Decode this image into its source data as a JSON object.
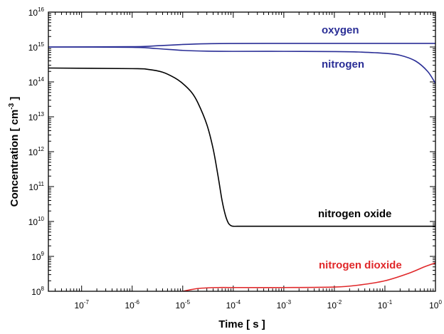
{
  "chart_data": {
    "type": "line",
    "title": "",
    "xlabel": "Time [ s ]",
    "ylabel": "Concentration [ cm",
    "ylabel_exponent": "-3",
    "ylabel_suffix": " ]",
    "x_scale": "log",
    "y_scale": "log",
    "xlim": [
      2.2e-08,
      1
    ],
    "ylim": [
      100000000.0,
      1e+16
    ],
    "x_ticks": [
      {
        "base": "10",
        "exp": "-7",
        "value": 1e-07
      },
      {
        "base": "10",
        "exp": "-6",
        "value": 1e-06
      },
      {
        "base": "10",
        "exp": "-5",
        "value": 1e-05
      },
      {
        "base": "10",
        "exp": "-4",
        "value": 0.0001
      },
      {
        "base": "10",
        "exp": "-3",
        "value": 0.001
      },
      {
        "base": "10",
        "exp": "-2",
        "value": 0.01
      },
      {
        "base": "10",
        "exp": "-1",
        "value": 0.1
      },
      {
        "base": "10",
        "exp": "0",
        "value": 1
      }
    ],
    "y_ticks": [
      {
        "base": "10",
        "exp": "8",
        "value": 100000000.0
      },
      {
        "base": "10",
        "exp": "9",
        "value": 1000000000.0
      },
      {
        "base": "10",
        "exp": "10",
        "value": 10000000000.0
      },
      {
        "base": "10",
        "exp": "11",
        "value": 100000000000.0
      },
      {
        "base": "10",
        "exp": "12",
        "value": 1000000000000.0
      },
      {
        "base": "10",
        "exp": "13",
        "value": 10000000000000.0
      },
      {
        "base": "10",
        "exp": "14",
        "value": 100000000000000.0
      },
      {
        "base": "10",
        "exp": "15",
        "value": 1000000000000000.0
      },
      {
        "base": "10",
        "exp": "16",
        "value": 1e+16
      }
    ],
    "series": [
      {
        "name": "oxygen",
        "color": "#2a2e96",
        "x": [
          2.2e-08,
          1e-06,
          3e-06,
          1e-05,
          3e-05,
          0.0001,
          0.001,
          0.01,
          0.1,
          1
        ],
        "y": [
          1000000000000000.0,
          1020000000000000.0,
          1080000000000000.0,
          1180000000000000.0,
          1240000000000000.0,
          1260000000000000.0,
          1270000000000000.0,
          1270000000000000.0,
          1270000000000000.0,
          1270000000000000.0
        ]
      },
      {
        "name": "nitrogen",
        "color": "#2a2e96",
        "x": [
          2.2e-08,
          1e-06,
          3e-06,
          1e-05,
          3e-05,
          0.0001,
          0.001,
          0.01,
          0.03,
          0.1,
          0.2,
          0.4,
          0.7,
          1
        ],
        "y": [
          1000000000000000.0,
          980000000000000.0,
          900000000000000.0,
          800000000000000.0,
          760000000000000.0,
          750000000000000.0,
          750000000000000.0,
          740000000000000.0,
          720000000000000.0,
          660000000000000.0,
          580000000000000.0,
          400000000000000.0,
          200000000000000.0,
          90000000000000.0
        ]
      },
      {
        "name": "nitrogen oxide",
        "color": "#000000",
        "x": [
          2.2e-08,
          1e-06,
          2e-06,
          4e-06,
          7e-06,
          1e-05,
          1.5e-05,
          2e-05,
          3e-05,
          4e-05,
          5e-05,
          6e-05,
          7e-05,
          8e-05,
          9e-05,
          0.0001,
          0.00012,
          0.0002,
          0.001,
          0.01,
          0.1,
          1
        ],
        "y": [
          250000000000000.0,
          240000000000000.0,
          230000000000000.0,
          190000000000000.0,
          130000000000000.0,
          90000000000000.0,
          50000000000000.0,
          25000000000000.0,
          6000000000000.0,
          1200000000000.0,
          200000000000.0,
          40000000000.0,
          15000000000.0,
          9000000000.0,
          7600000000.0,
          7300000000.0,
          7300000000.0,
          7300000000.0,
          7300000000.0,
          7300000000.0,
          7300000000.0,
          7300000000.0
        ]
      },
      {
        "name": "nitrogen dioxide",
        "color": "#e0282a",
        "x": [
          1e-05,
          1.5e-05,
          2e-05,
          3e-05,
          5e-05,
          0.0001,
          0.001,
          0.01,
          0.03,
          0.1,
          0.3,
          0.6,
          1
        ],
        "y": [
          100000000.0,
          112000000.0,
          120000000.0,
          125000000.0,
          128000000.0,
          128000000.0,
          128000000.0,
          132000000.0,
          150000000.0,
          200000000.0,
          330000000.0,
          500000000.0,
          650000000.0
        ]
      }
    ],
    "labels": {
      "oxygen": "oxygen",
      "nitrogen": "nitrogen",
      "nitrogen_oxide": "nitrogen oxide",
      "nitrogen_dioxide": "nitrogen dioxide"
    },
    "grid": false
  }
}
